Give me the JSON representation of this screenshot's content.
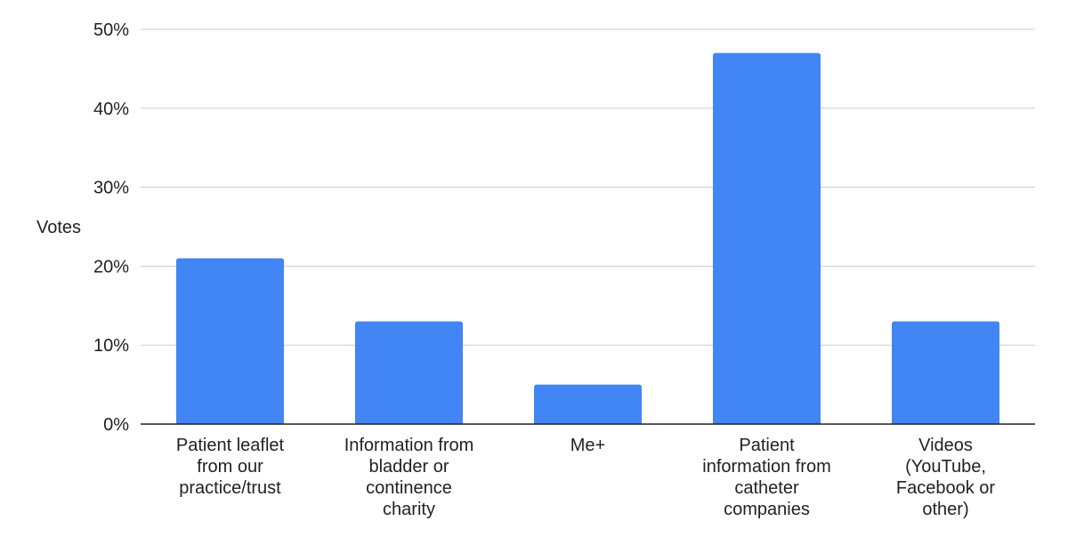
{
  "chart_data": {
    "type": "bar",
    "ylabel": "Votes",
    "ylim": [
      0,
      50
    ],
    "yticks": [
      "0%",
      "10%",
      "20%",
      "30%",
      "40%",
      "50%"
    ],
    "grid": true,
    "legend": "none",
    "categories": [
      [
        "Patient leaflet",
        "from our",
        "practice/trust"
      ],
      [
        "Information from",
        "bladder or",
        "continence",
        "charity"
      ],
      [
        "Me+"
      ],
      [
        "Patient",
        "information from",
        "catheter",
        "companies"
      ],
      [
        "Videos",
        "(YouTube,",
        "Facebook or",
        "other)"
      ]
    ],
    "values": [
      21,
      13,
      5,
      47,
      13
    ],
    "colors": {
      "bar": "#4285f4",
      "grid": "#cccccc",
      "axis": "#222222"
    }
  }
}
